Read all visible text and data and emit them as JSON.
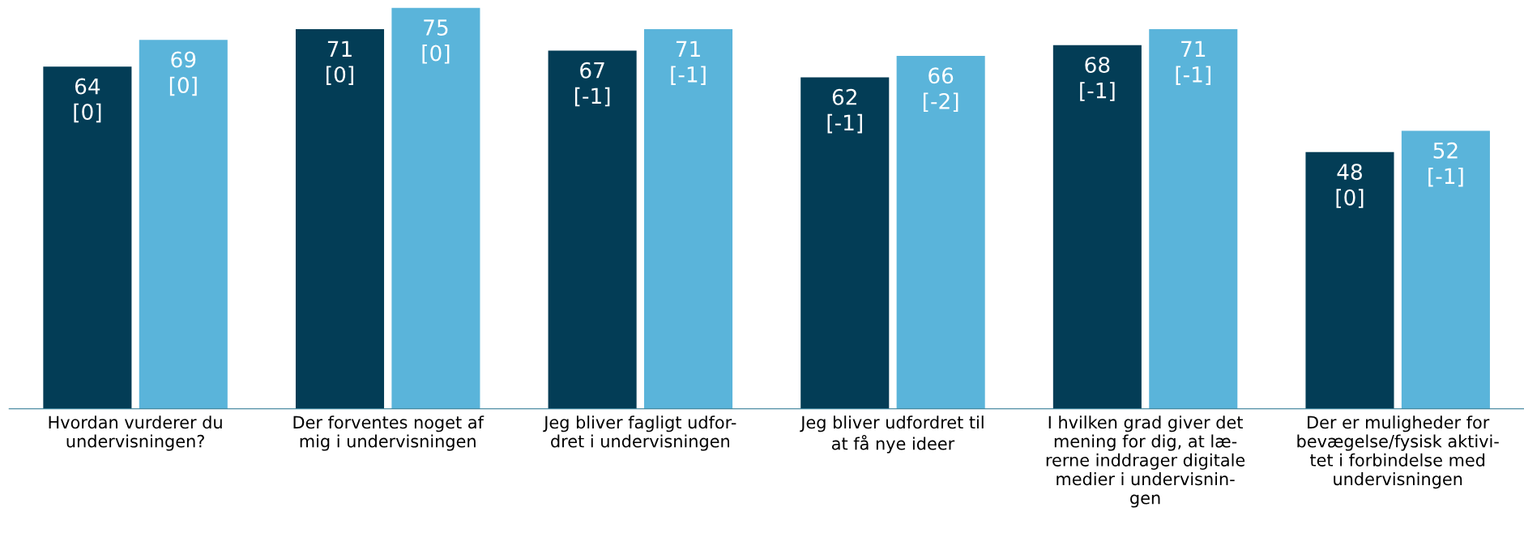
{
  "chart_data": {
    "type": "bar",
    "categories": [
      "Hvordan vurderer du\nundervisningen?",
      "Der forventes noget af\nmig i undervisningen",
      "Jeg bliver fagligt udfor-\ndret i undervisningen",
      "Jeg bliver udfordret til\nat få nye ideer",
      "I hvilken grad giver det\nmening for dig, at læ-\nrerne inddrager digitale\nmedier i undervisnin-\ngen",
      "Der er muligheder for\nbevægelse/fysisk aktivi-\ntet i forbindelse med\nundervisningen"
    ],
    "series": [
      {
        "color": "#033d56",
        "values": [
          64,
          71,
          67,
          62,
          68,
          48
        ],
        "value_labels": [
          "64\n[0]",
          "71\n[0]",
          "67\n[-1]",
          "62\n[-1]",
          "68\n[-1]",
          "48\n[0]"
        ]
      },
      {
        "color": "#5ab4da",
        "values": [
          69,
          75,
          71,
          66,
          71,
          52
        ],
        "value_labels": [
          "69\n[0]",
          "75\n[0]",
          "71\n[-1]",
          "66\n[-2]",
          "71\n[-1]",
          "52\n[-1]"
        ]
      }
    ],
    "tick_labels": "x",
    "grid": false,
    "legend": false
  }
}
